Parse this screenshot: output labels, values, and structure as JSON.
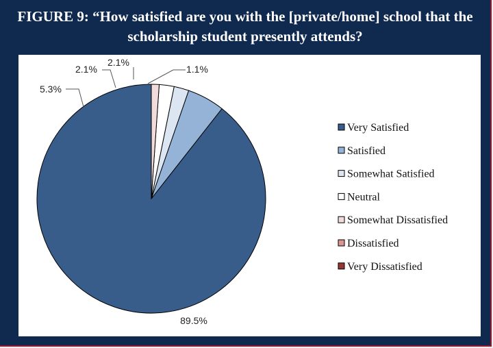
{
  "figure": {
    "title_line1": "FIGURE 9: “How satisfied are you with the [private/home] school that the",
    "title_line2": "scholarship student presently attends?"
  },
  "chart_data": {
    "type": "pie",
    "title": "FIGURE 9: “How satisfied are you with the [private/home] school that the scholarship student presently attends?",
    "categories": [
      "Very Satisfied",
      "Satisfied",
      "Somewhat Satisfied",
      "Neutral",
      "Somewhat Dissatisfied",
      "Dissatisfied",
      "Very Dissatisfied"
    ],
    "values": [
      89.5,
      5.3,
      2.1,
      2.1,
      1.1,
      0,
      0
    ],
    "data_labels": [
      "89.5%",
      "5.3%",
      "2.1%",
      "2.1%",
      "1.1%",
      "",
      ""
    ],
    "colors": [
      "#385d8a",
      "#95b3d7",
      "#dce6f2",
      "#ffffff",
      "#f2dcdb",
      "#d99694",
      "#953735"
    ],
    "legend_position": "right",
    "start_angle": "12 o'clock",
    "direction": "counterclockwise"
  }
}
